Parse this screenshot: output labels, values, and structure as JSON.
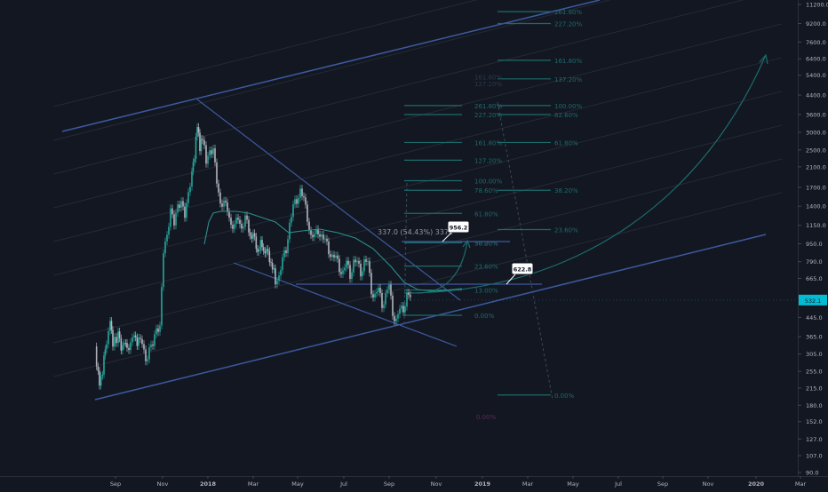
{
  "chart_data": {
    "type": "candlestick",
    "y_scale": "log",
    "ylim": [
      90,
      11200
    ],
    "x_tick_labels": [
      "Sep",
      "Nov",
      "2018",
      "Mar",
      "May",
      "Jul",
      "Sep",
      "Nov",
      "2019",
      "Mar",
      "May",
      "Jul",
      "Sep",
      "Nov",
      "2020",
      "Mar"
    ],
    "y_tick_labels": [
      "11200.0",
      "9200.0",
      "7600.0",
      "6400.0",
      "5400.0",
      "4400.0",
      "3600.0",
      "3000.0",
      "2500.0",
      "2100.0",
      "1700.0",
      "1400.0",
      "1150.0",
      "950.0",
      "790.0",
      "665.0",
      "545.0",
      "445.0",
      "365.0",
      "305.0",
      "255.0",
      "215.0",
      "180.0",
      "152.0",
      "127.0",
      "107.0",
      "90.0"
    ],
    "y_tick_values": [
      11200,
      9200,
      7600,
      6400,
      5400,
      4400,
      3600,
      3000,
      2500,
      2100,
      1700,
      1400,
      1150,
      950,
      790,
      665,
      545,
      445,
      365,
      305,
      255,
      215,
      180,
      152,
      127,
      107,
      90
    ],
    "current_price_label": "532.1",
    "current_price": 532.1,
    "close_path": [
      [
        107,
        330
      ],
      [
        112,
        215
      ],
      [
        117,
        290
      ],
      [
        120,
        330
      ],
      [
        124,
        420
      ],
      [
        127,
        350
      ],
      [
        133,
        370
      ],
      [
        138,
        320
      ],
      [
        143,
        345
      ],
      [
        147,
        330
      ],
      [
        151,
        365
      ],
      [
        156,
        345
      ],
      [
        160,
        335
      ],
      [
        164,
        300
      ],
      [
        168,
        312
      ],
      [
        172,
        330
      ],
      [
        176,
        420
      ],
      [
        180,
        390
      ],
      [
        184,
        860
      ],
      [
        188,
        1100
      ],
      [
        192,
        1300
      ],
      [
        196,
        1150
      ],
      [
        200,
        1500
      ],
      [
        204,
        1400
      ],
      [
        208,
        1250
      ],
      [
        212,
        1700
      ],
      [
        216,
        1900
      ],
      [
        219,
        2300
      ],
      [
        222,
        3200
      ],
      [
        225,
        2500
      ],
      [
        228,
        2800
      ],
      [
        232,
        2200
      ],
      [
        236,
        2600
      ],
      [
        240,
        2400
      ],
      [
        244,
        1800
      ],
      [
        248,
        1500
      ],
      [
        252,
        1400
      ],
      [
        256,
        1350
      ],
      [
        260,
        1200
      ],
      [
        264,
        1100
      ],
      [
        268,
        1250
      ],
      [
        272,
        1150
      ],
      [
        276,
        1200
      ],
      [
        280,
        1100
      ],
      [
        285,
        1000
      ],
      [
        290,
        900
      ],
      [
        295,
        950
      ],
      [
        300,
        850
      ],
      [
        305,
        800
      ],
      [
        310,
        650
      ],
      [
        314,
        700
      ],
      [
        318,
        780
      ],
      [
        322,
        900
      ],
      [
        326,
        1200
      ],
      [
        330,
        1350
      ],
      [
        334,
        1500
      ],
      [
        338,
        1700
      ],
      [
        342,
        1450
      ],
      [
        346,
        1250
      ],
      [
        350,
        1050
      ],
      [
        354,
        1000
      ],
      [
        358,
        1100
      ],
      [
        362,
        1050
      ],
      [
        366,
        950
      ],
      [
        370,
        900
      ],
      [
        374,
        850
      ],
      [
        378,
        800
      ],
      [
        382,
        750
      ],
      [
        386,
        720
      ],
      [
        390,
        760
      ],
      [
        394,
        700
      ],
      [
        398,
        800
      ],
      [
        402,
        760
      ],
      [
        406,
        720
      ],
      [
        410,
        800
      ],
      [
        414,
        760
      ],
      [
        418,
        600
      ],
      [
        422,
        560
      ],
      [
        426,
        580
      ],
      [
        430,
        520
      ],
      [
        434,
        560
      ],
      [
        438,
        600
      ],
      [
        442,
        480
      ],
      [
        446,
        430
      ],
      [
        450,
        470
      ],
      [
        454,
        500
      ],
      [
        458,
        560
      ],
      [
        462,
        532
      ]
    ],
    "annotations": {
      "measure_text": "337.0 (54.43%) 3370",
      "target_label_upper": "956.2",
      "target_label_lower": "622.8",
      "fib_lower_left": [
        {
          "label": "261.80%",
          "price": 3950
        },
        {
          "label": "227.20%",
          "price": 3600
        },
        {
          "label": "161.80%",
          "price": 2700
        },
        {
          "label": "127.20%",
          "price": 2250
        },
        {
          "label": "100.00%",
          "price": 1820
        },
        {
          "label": "78.60%",
          "price": 1650
        },
        {
          "label": "61.80%",
          "price": 1300
        },
        {
          "label": "50.00%",
          "price": 960
        },
        {
          "label": "38.20%",
          "price": 960
        },
        {
          "label": "23.60%",
          "price": 755
        },
        {
          "label": "13.00%",
          "price": 590
        },
        {
          "label": "0.00%",
          "price": 455
        }
      ],
      "fib_right": [
        {
          "label": "261.80%",
          "price": 10400
        },
        {
          "label": "227.20%",
          "price": 9200
        },
        {
          "label": "161.80%",
          "price": 6300
        },
        {
          "label": "137.20%",
          "price": 5200
        },
        {
          "label": "100.00%",
          "price": 3950
        },
        {
          "label": "82.60%",
          "price": 3600
        },
        {
          "label": "61.80%",
          "price": 2700
        },
        {
          "label": "38.20%",
          "price": 1650
        },
        {
          "label": "23.60%",
          "price": 1100
        },
        {
          "label": "0.00%",
          "price": 200
        }
      ],
      "fib_upper_mid": [
        {
          "label": "161.80%",
          "price": 5300
        },
        {
          "label": "127.20%",
          "price": 4950
        }
      ],
      "fib_bottom_label": {
        "label": "0.00%",
        "price": 160
      }
    },
    "colors": {
      "background": "#131722",
      "up": "#26a69a",
      "down": "#b2b5be",
      "channel": "#3d5a9e",
      "fib": "#1c6b6b",
      "ma": "#2a8f8f",
      "price_tag": "#00bcd4",
      "axis_text": "#b2b5be"
    }
  }
}
